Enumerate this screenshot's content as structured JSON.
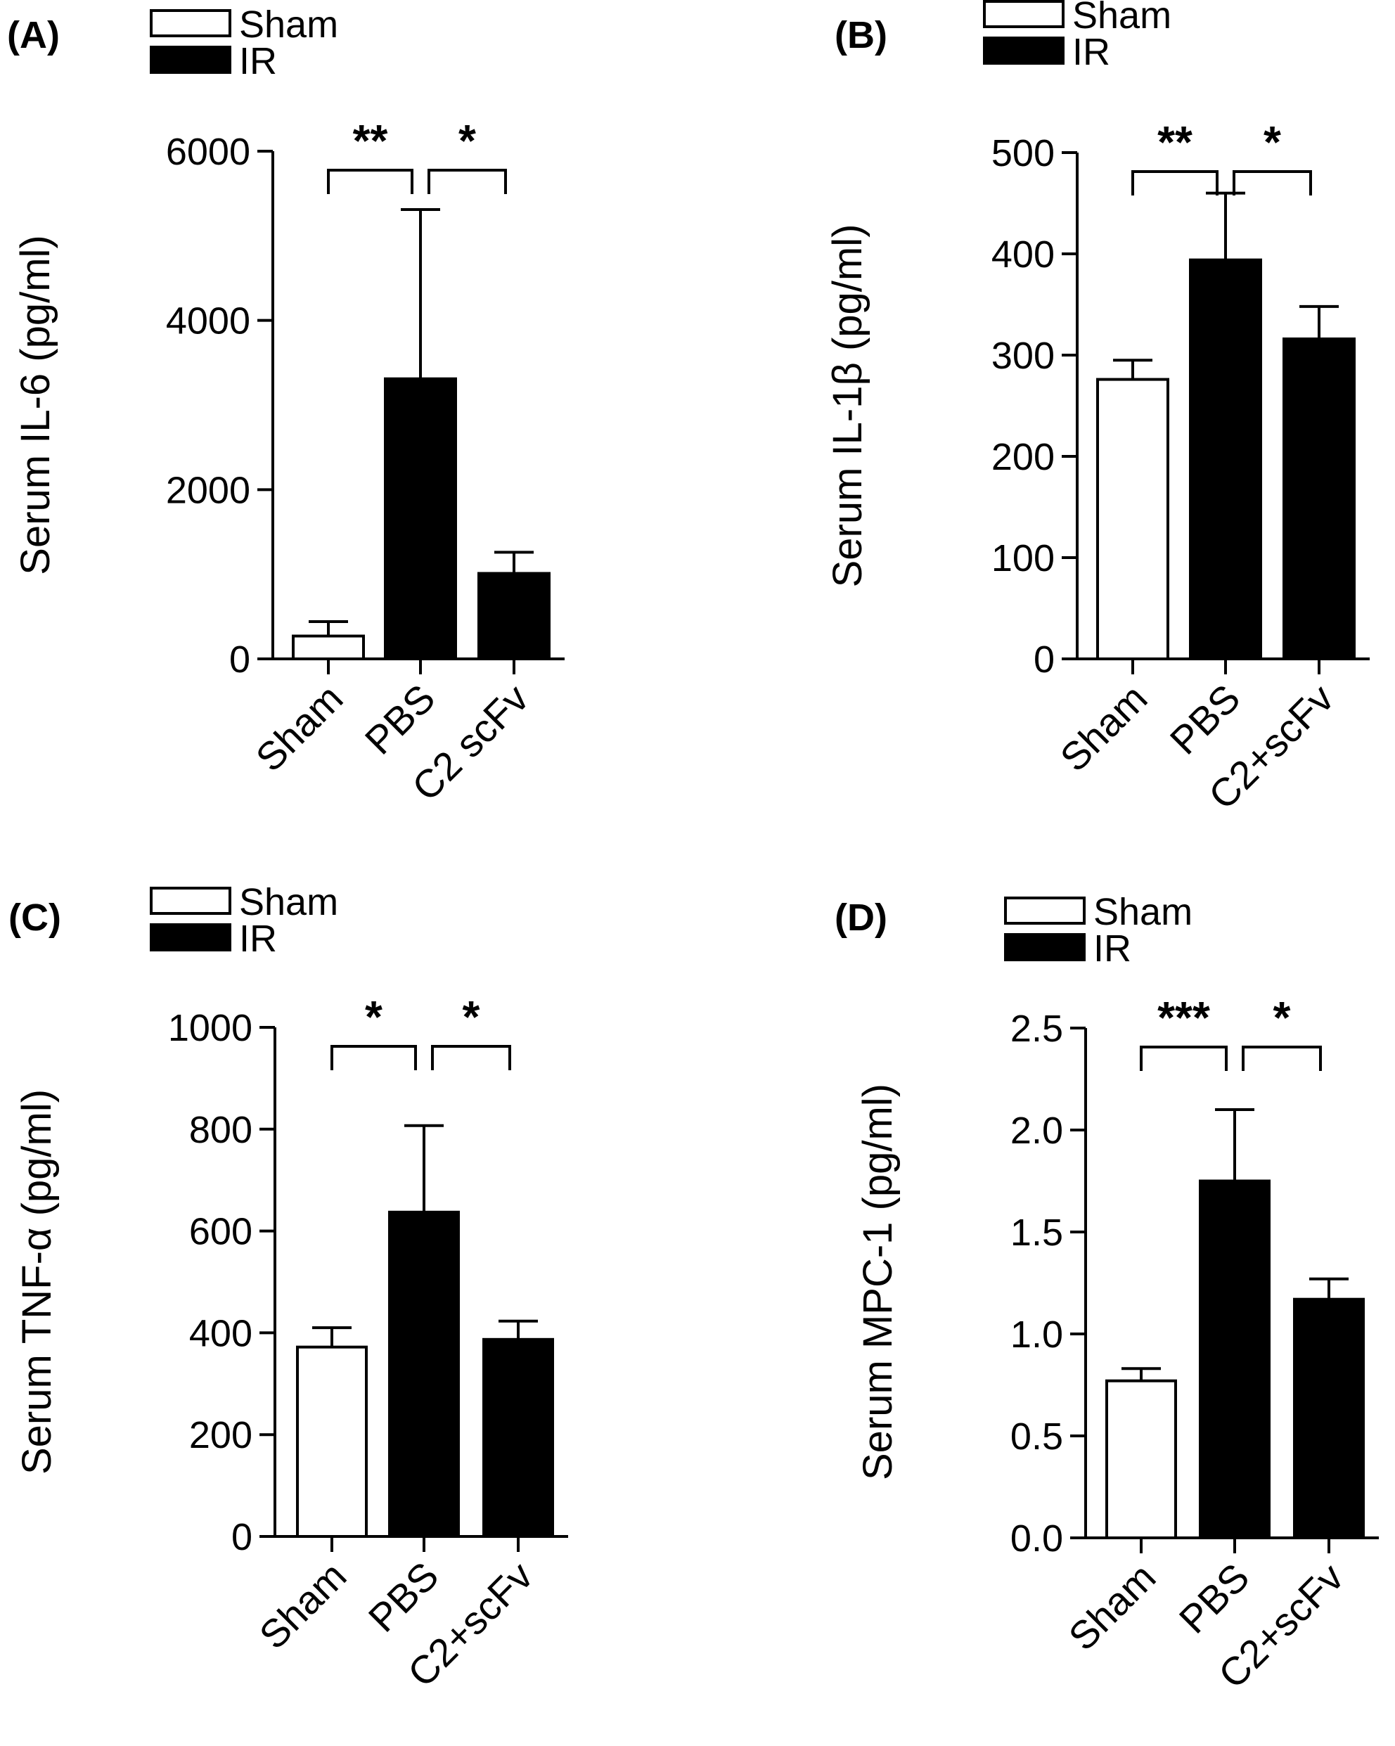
{
  "chart_data": [
    {
      "type": "bar",
      "panel_label": "(A)",
      "ylabel": "Serum IL-6 (pg/ml)",
      "categories": [
        "Sham",
        "PBS",
        "C2 scFv"
      ],
      "values": [
        270,
        3310,
        1010
      ],
      "errors": [
        170,
        2000,
        250
      ],
      "bar_fill": [
        "#ffffff",
        "#000000",
        "#000000"
      ],
      "ylim": [
        0,
        6000
      ],
      "yticks": [
        0,
        2000,
        4000,
        6000
      ],
      "ytick_labels": [
        "0",
        "2000",
        "4000",
        "6000"
      ],
      "legend": [
        {
          "label": "Sham",
          "fill": "#ffffff"
        },
        {
          "label": "IR",
          "fill": "#000000"
        }
      ],
      "legend_position": "top-left",
      "grid": false,
      "significance": [
        {
          "from": 0,
          "to": 1,
          "label": "**"
        },
        {
          "from": 1,
          "to": 2,
          "label": "*"
        }
      ]
    },
    {
      "type": "bar",
      "panel_label": "(B)",
      "ylabel": "Serum IL-1β (pg/ml)",
      "categories": [
        "Sham",
        "PBS",
        "C2+scFv"
      ],
      "values": [
        276,
        394,
        316
      ],
      "errors": [
        19,
        66,
        32
      ],
      "bar_fill": [
        "#ffffff",
        "#000000",
        "#000000"
      ],
      "ylim": [
        0,
        500
      ],
      "yticks": [
        0,
        100,
        200,
        300,
        400,
        500
      ],
      "ytick_labels": [
        "0",
        "100",
        "200",
        "300",
        "400",
        "500"
      ],
      "legend": [
        {
          "label": "Sham",
          "fill": "#ffffff"
        },
        {
          "label": "IR",
          "fill": "#000000"
        }
      ],
      "legend_position": "top-left",
      "grid": false,
      "significance": [
        {
          "from": 0,
          "to": 1,
          "label": "**"
        },
        {
          "from": 1,
          "to": 2,
          "label": "*"
        }
      ]
    },
    {
      "type": "bar",
      "panel_label": "(C)",
      "ylabel": "Serum TNF-α (pg/ml)",
      "categories": [
        "Sham",
        "PBS",
        "C2+scFv"
      ],
      "values": [
        372,
        637,
        387
      ],
      "errors": [
        38,
        170,
        36
      ],
      "bar_fill": [
        "#ffffff",
        "#000000",
        "#000000"
      ],
      "ylim": [
        0,
        1000
      ],
      "yticks": [
        0,
        200,
        400,
        600,
        800,
        1000
      ],
      "ytick_labels": [
        "0",
        "200",
        "400",
        "600",
        "800",
        "1000"
      ],
      "legend": [
        {
          "label": "Sham",
          "fill": "#ffffff"
        },
        {
          "label": "IR",
          "fill": "#000000"
        }
      ],
      "legend_position": "top-left",
      "grid": false,
      "significance": [
        {
          "from": 0,
          "to": 1,
          "label": "*"
        },
        {
          "from": 1,
          "to": 2,
          "label": "*"
        }
      ]
    },
    {
      "type": "bar",
      "panel_label": "(D)",
      "ylabel": "Serum MPC-1 (pg/ml)",
      "categories": [
        "Sham",
        "PBS",
        "C2+scFv"
      ],
      "values": [
        0.77,
        1.75,
        1.17
      ],
      "errors": [
        0.06,
        0.35,
        0.1
      ],
      "bar_fill": [
        "#ffffff",
        "#000000",
        "#000000"
      ],
      "ylim": [
        0,
        2.5
      ],
      "yticks": [
        0,
        0.5,
        1.0,
        1.5,
        2.0,
        2.5
      ],
      "ytick_labels": [
        "0.0",
        "0.5",
        "1.0",
        "1.5",
        "2.0",
        "2.5"
      ],
      "legend": [
        {
          "label": "Sham",
          "fill": "#ffffff"
        },
        {
          "label": "IR",
          "fill": "#000000"
        }
      ],
      "legend_position": "top-left",
      "grid": false,
      "significance": [
        {
          "from": 0,
          "to": 1,
          "label": "***"
        },
        {
          "from": 1,
          "to": 2,
          "label": "*"
        }
      ]
    }
  ]
}
